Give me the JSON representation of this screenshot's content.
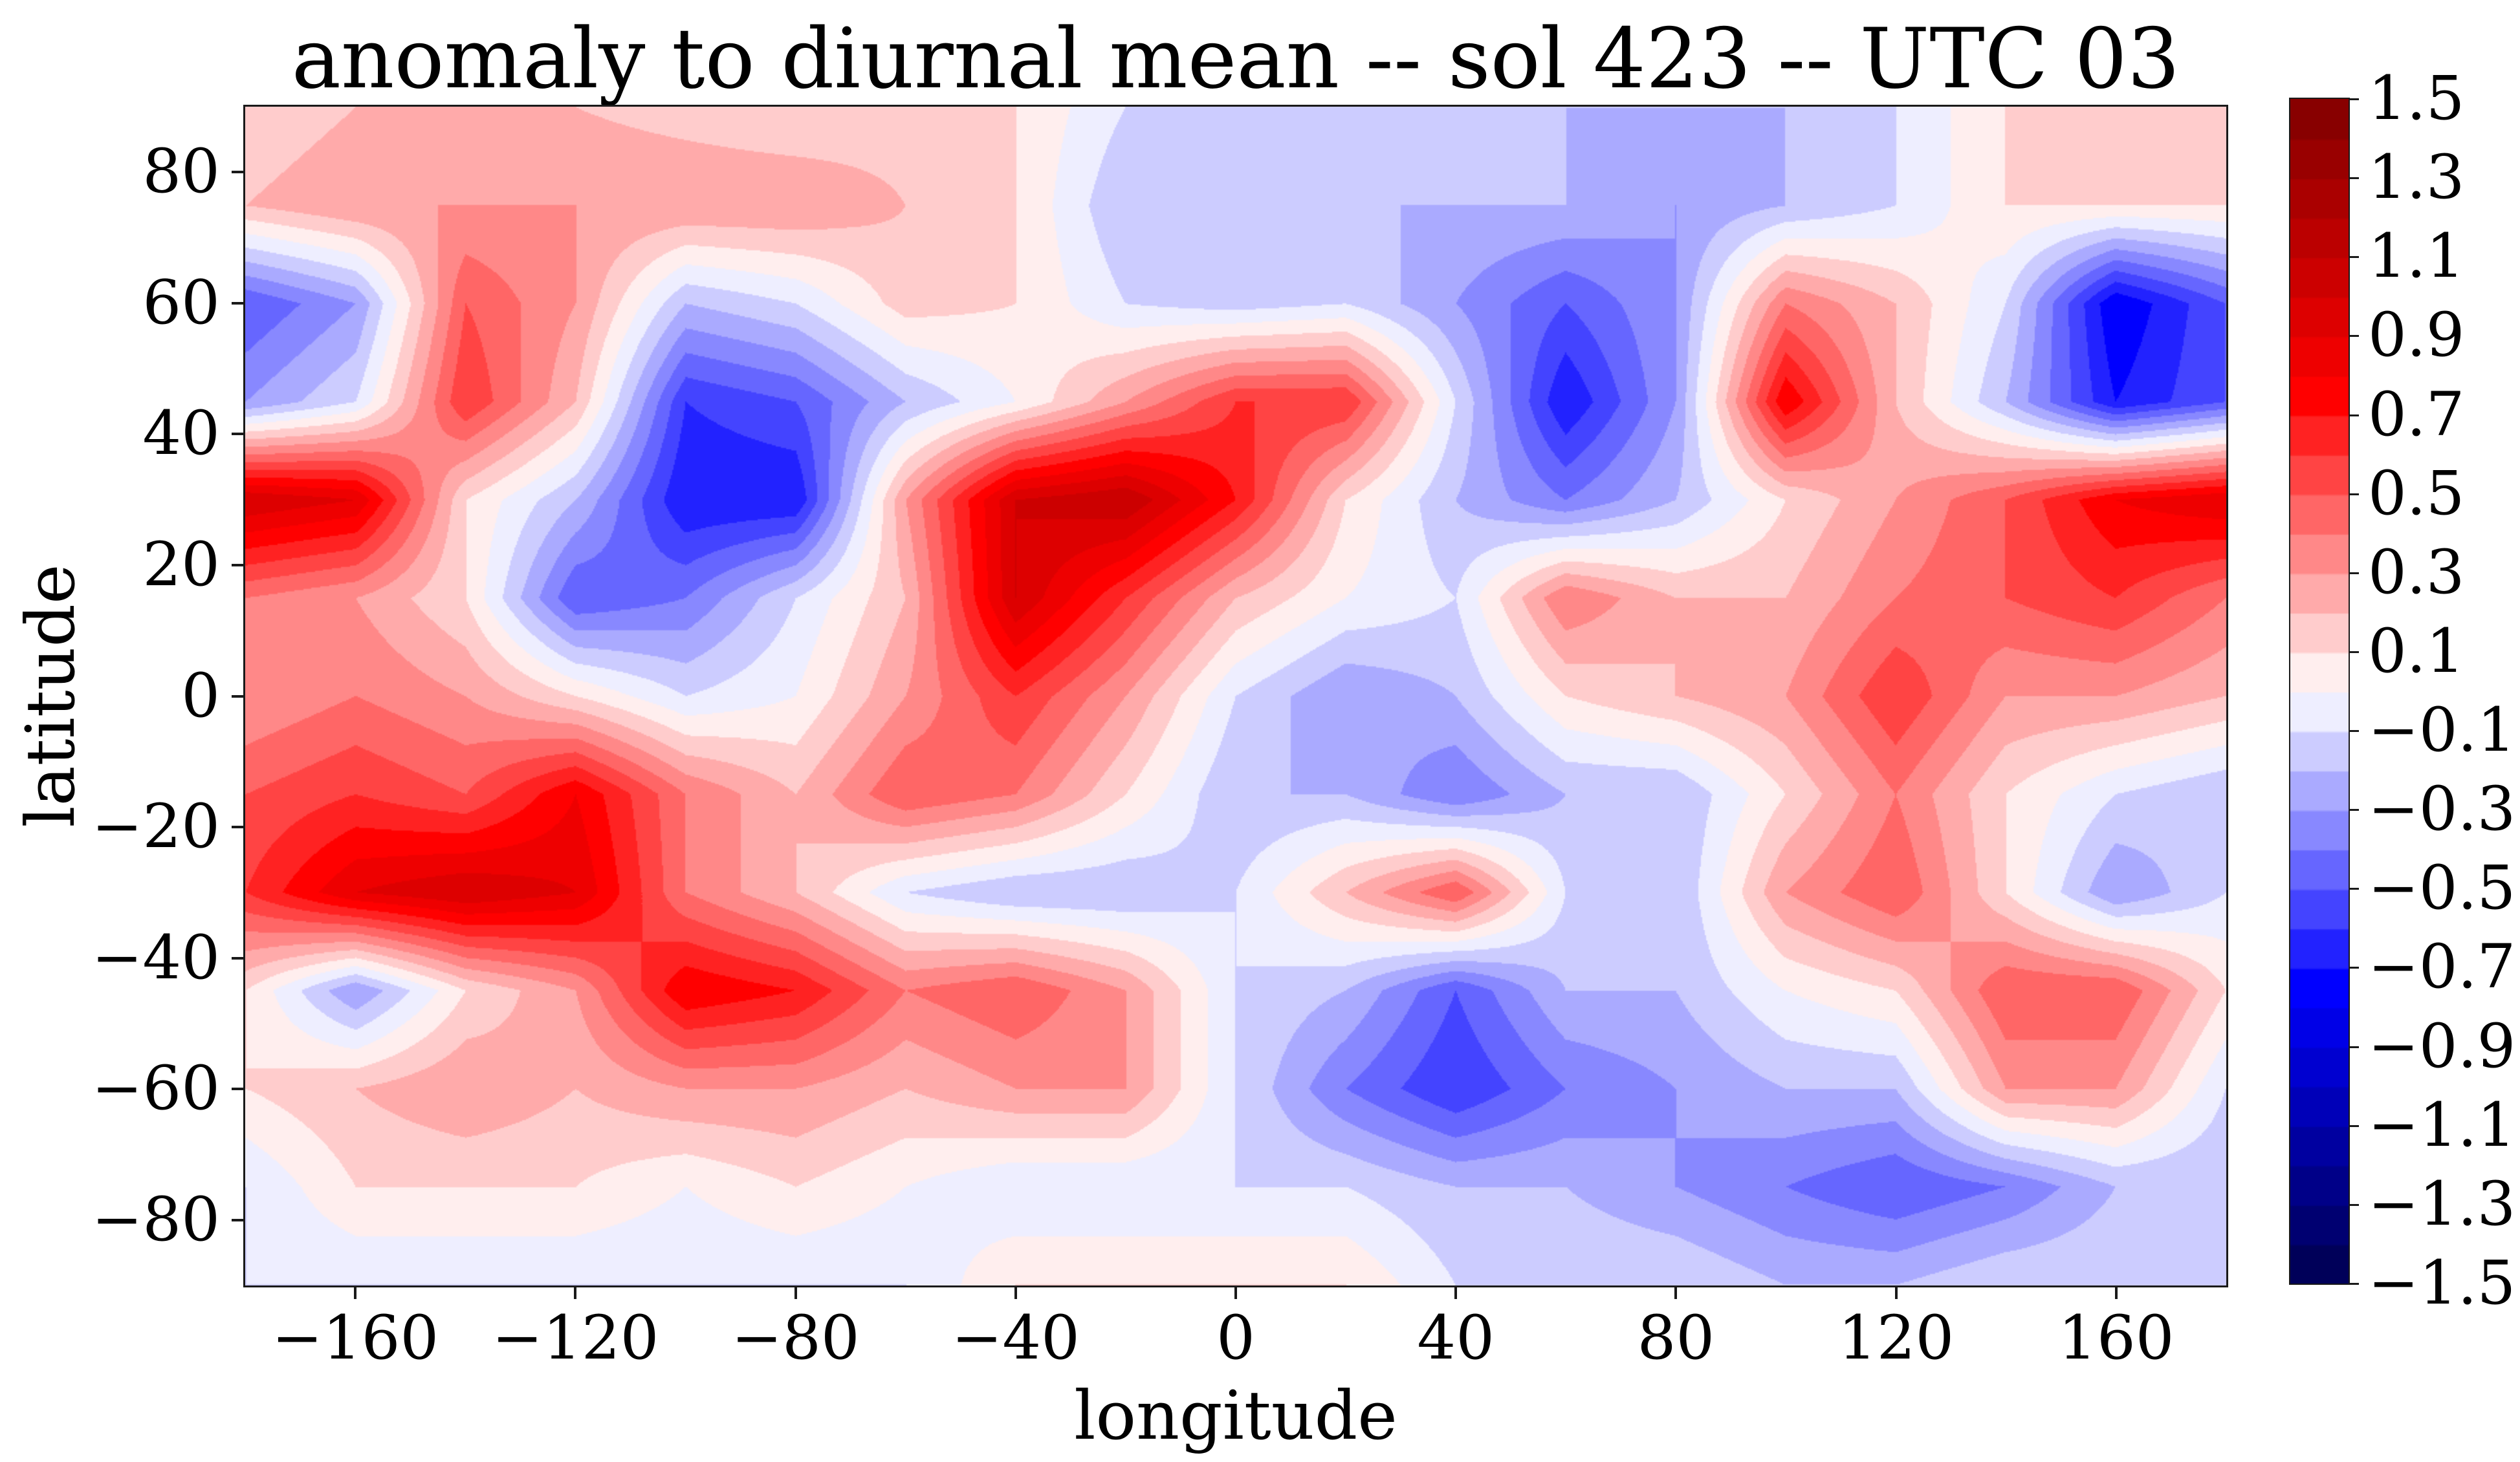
{
  "title": "anomaly to diurnal mean -- sol 423 -- UTC 03",
  "axes": {
    "xlabel": "longitude",
    "ylabel": "latitude",
    "x_tick_values": [
      -160,
      -120,
      -80,
      -40,
      0,
      40,
      80,
      120,
      160
    ],
    "x_tick_labels": [
      "−160",
      "−120",
      "−80",
      "−40",
      "0",
      "40",
      "80",
      "120",
      "160"
    ],
    "y_tick_values": [
      80,
      60,
      40,
      20,
      0,
      -20,
      -40,
      -60,
      -80
    ],
    "y_tick_labels": [
      "80",
      "60",
      "40",
      "20",
      "0",
      "−20",
      "−40",
      "−60",
      "−80"
    ]
  },
  "colorbar": {
    "tick_values": [
      1.5,
      1.3,
      1.1,
      0.9,
      0.7,
      0.5,
      0.3,
      0.1,
      -0.1,
      -0.3,
      -0.5,
      -0.7,
      -0.9,
      -1.1,
      -1.3,
      -1.5
    ],
    "tick_labels": [
      "1.5",
      "1.3",
      "1.1",
      "0.9",
      "0.7",
      "0.5",
      "0.3",
      "0.1",
      "−0.1",
      "−0.3",
      "−0.5",
      "−0.7",
      "−0.9",
      "−1.1",
      "−1.3",
      "−1.5"
    ]
  },
  "chart_data": {
    "type": "heatmap",
    "subtype": "filled-contour",
    "title": "anomaly to diurnal mean -- sol 423 -- UTC 03",
    "xlabel": "longitude",
    "ylabel": "latitude",
    "xlim": [
      -180,
      180
    ],
    "ylim": [
      -90,
      90
    ],
    "levels_min": -1.5,
    "levels_max": 1.5,
    "levels_step": 0.1,
    "grid": false,
    "legend_position": "colorbar-right",
    "colormap": {
      "name": "seismic-like diverging red-blue",
      "stops": [
        [
          0.0,
          "#00004d"
        ],
        [
          0.25,
          "#0000ff"
        ],
        [
          0.5,
          "#ffffff"
        ],
        [
          0.75,
          "#ff0000"
        ],
        [
          1.0,
          "#800000"
        ]
      ]
    },
    "lon": [
      -180,
      -160,
      -140,
      -120,
      -100,
      -80,
      -60,
      -40,
      -20,
      0,
      20,
      40,
      60,
      80,
      100,
      120,
      140,
      160,
      180
    ],
    "lat": [
      90,
      75,
      60,
      45,
      30,
      15,
      0,
      -15,
      -30,
      -45,
      -60,
      -75,
      -90
    ],
    "values": [
      [
        0.1,
        0.2,
        0.2,
        0.2,
        0.15,
        0.1,
        0.15,
        0.1,
        -0.1,
        -0.1,
        -0.1,
        -0.1,
        -0.2,
        -0.2,
        -0.2,
        -0.1,
        0.1,
        0.1,
        0.1
      ],
      [
        0.2,
        0.3,
        0.3,
        0.3,
        0.3,
        0.3,
        0.2,
        0.1,
        -0.2,
        -0.2,
        -0.2,
        -0.2,
        -0.2,
        -0.3,
        -0.2,
        -0.1,
        0.1,
        0.1,
        0.1
      ],
      [
        -0.5,
        -0.3,
        0.5,
        0.3,
        -0.2,
        -0.1,
        0.15,
        0.1,
        -0.1,
        -0.15,
        -0.1,
        -0.3,
        -0.5,
        -0.3,
        0.4,
        0.2,
        -0.1,
        -0.8,
        -0.5
      ],
      [
        -0.3,
        -0.1,
        0.6,
        0.2,
        -0.6,
        -0.5,
        -0.2,
        0.0,
        0.3,
        0.6,
        0.6,
        -0.1,
        -0.7,
        -0.3,
        0.8,
        0.2,
        -0.2,
        -0.7,
        -0.5
      ],
      [
        1.0,
        0.9,
        0.1,
        -0.2,
        -0.7,
        -0.7,
        0.3,
        1.0,
        1.1,
        0.7,
        0.1,
        -0.2,
        -0.4,
        -0.2,
        0.1,
        0.3,
        0.5,
        0.8,
        0.9
      ],
      [
        0.4,
        0.3,
        0.1,
        -0.5,
        -0.4,
        -0.1,
        0.2,
        1.0,
        0.6,
        0.2,
        0.0,
        -0.1,
        0.4,
        0.2,
        0.2,
        0.4,
        0.5,
        0.6,
        0.4
      ],
      [
        0.3,
        0.4,
        0.3,
        0.1,
        -0.1,
        0.0,
        0.3,
        0.6,
        0.3,
        -0.1,
        -0.3,
        -0.2,
        0.1,
        0.2,
        0.3,
        0.6,
        0.3,
        0.3,
        0.2
      ],
      [
        0.5,
        0.6,
        0.5,
        0.8,
        0.4,
        0.2,
        0.5,
        0.4,
        0.1,
        -0.2,
        -0.2,
        -0.4,
        -0.2,
        -0.2,
        0.1,
        0.4,
        0.1,
        -0.1,
        -0.2
      ],
      [
        0.6,
        0.9,
        1.0,
        0.9,
        0.4,
        0.2,
        -0.1,
        -0.2,
        -0.2,
        -0.1,
        0.2,
        0.5,
        -0.1,
        -0.2,
        0.3,
        0.5,
        0.1,
        -0.3,
        -0.1
      ],
      [
        0.1,
        -0.3,
        0.1,
        0.3,
        0.8,
        0.7,
        0.4,
        0.5,
        0.3,
        -0.1,
        -0.2,
        -0.5,
        -0.2,
        -0.2,
        0.0,
        0.1,
        0.5,
        0.5,
        0.1
      ],
      [
        0.1,
        0.2,
        0.3,
        0.2,
        0.3,
        0.3,
        0.2,
        0.3,
        0.3,
        -0.1,
        -0.4,
        -0.6,
        -0.4,
        -0.3,
        -0.2,
        -0.2,
        0.3,
        0.3,
        -0.1
      ],
      [
        -0.1,
        0.1,
        0.1,
        0.1,
        0.0,
        0.1,
        0.0,
        -0.1,
        -0.1,
        -0.1,
        -0.1,
        -0.2,
        -0.2,
        -0.3,
        -0.4,
        -0.5,
        -0.4,
        -0.2,
        -0.2
      ],
      [
        -0.1,
        -0.1,
        -0.1,
        -0.1,
        -0.1,
        -0.1,
        -0.1,
        0.1,
        0.1,
        0.1,
        0.1,
        -0.1,
        -0.1,
        -0.1,
        -0.2,
        -0.2,
        -0.1,
        -0.1,
        -0.1
      ]
    ]
  }
}
